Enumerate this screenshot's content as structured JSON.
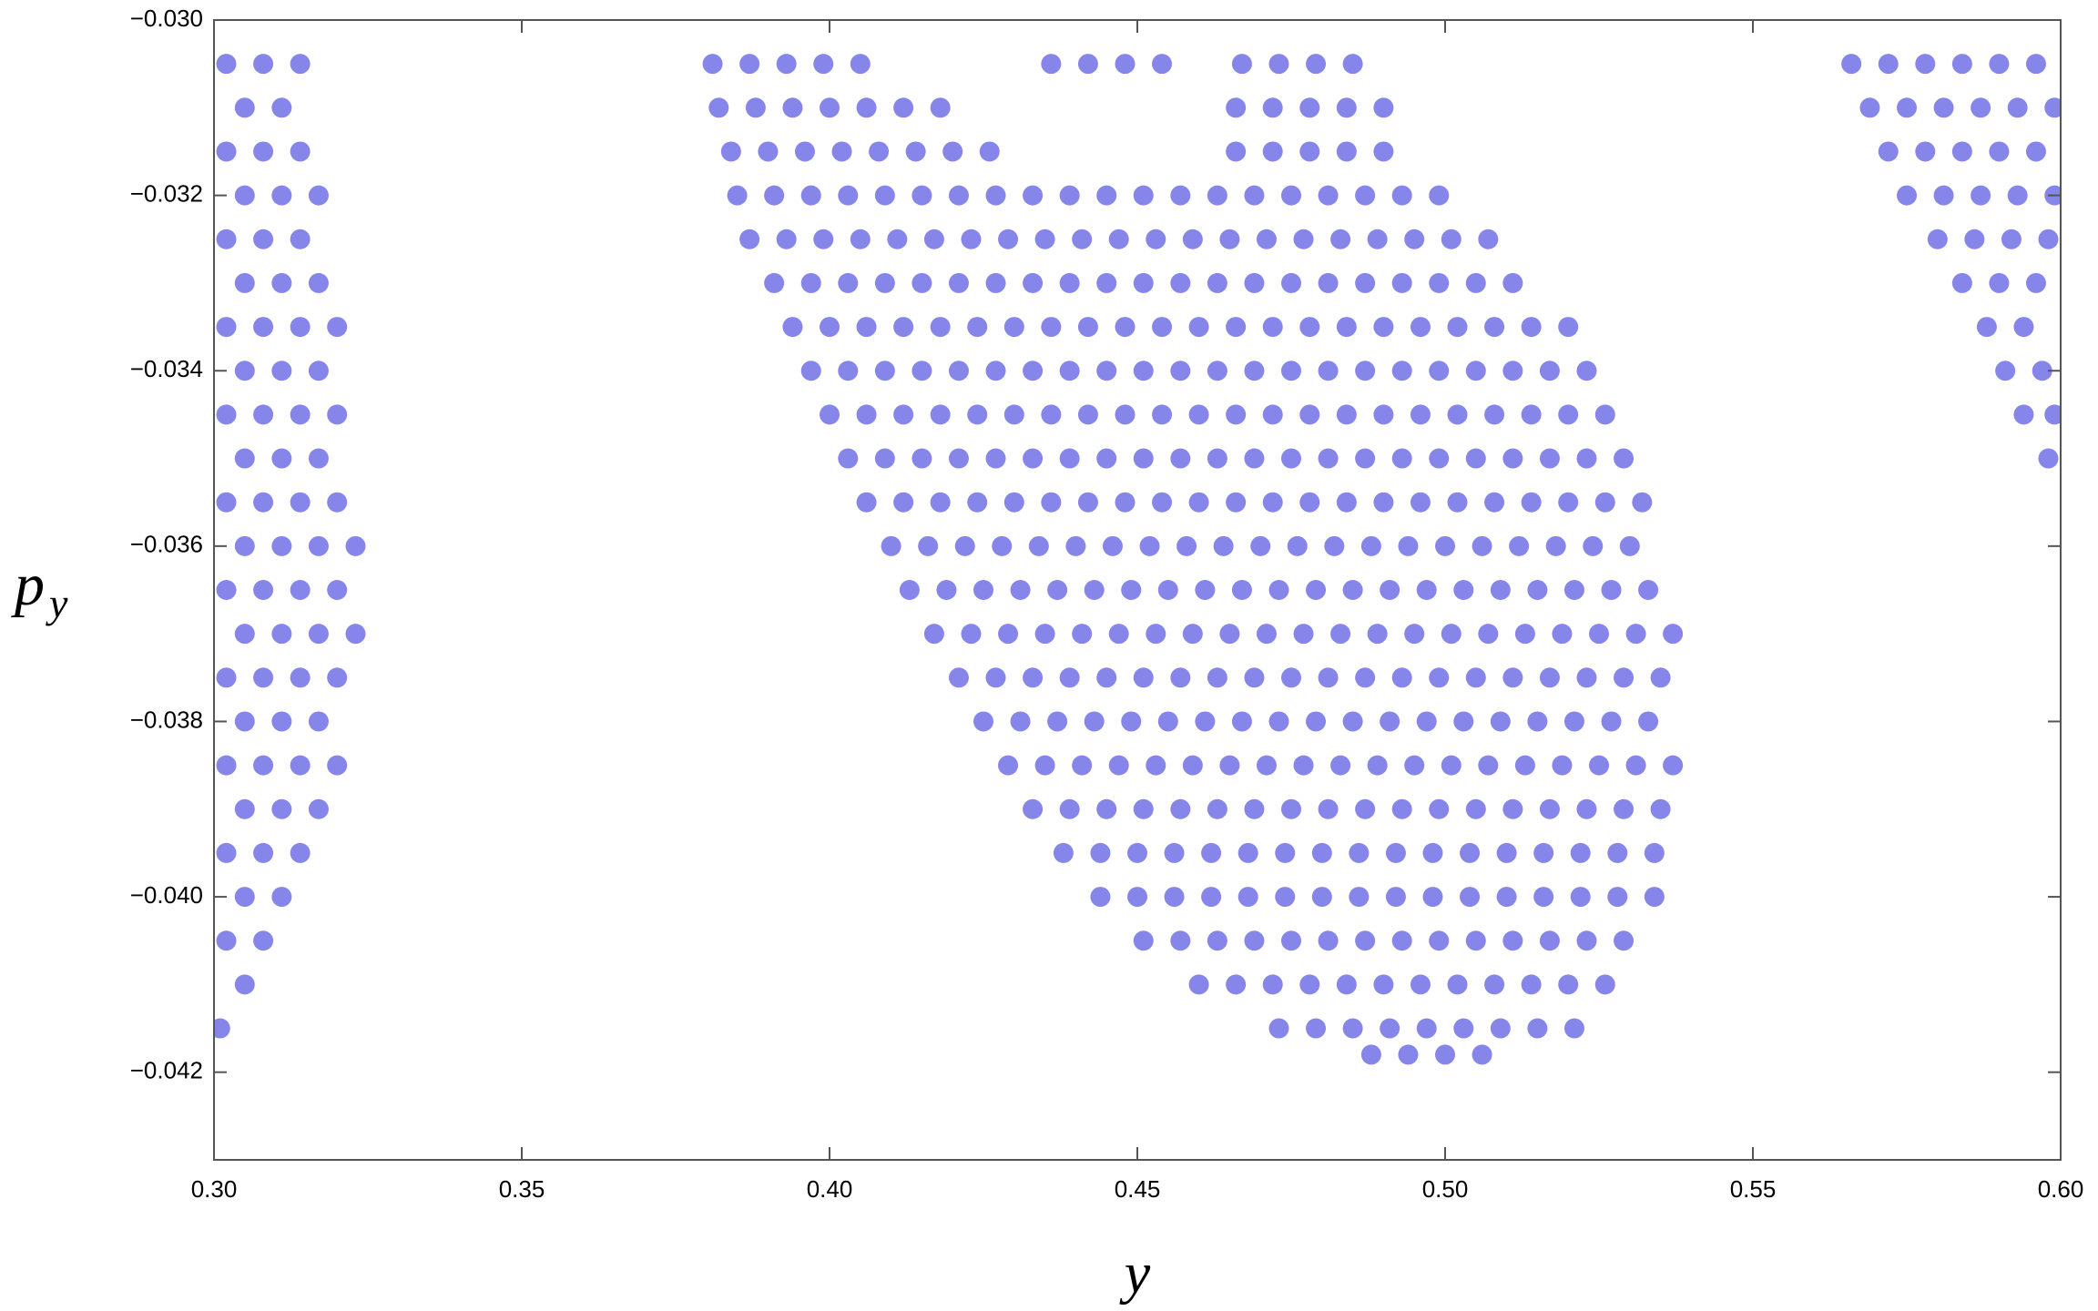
{
  "chart_data": {
    "type": "scatter",
    "xlabel": "y",
    "ylabel": "p",
    "ylabel_subscript": "y",
    "xlim": [
      0.3,
      0.6
    ],
    "ylim": [
      -0.043,
      -0.03
    ],
    "xticks": [
      {
        "value": 0.3,
        "label": "0.30"
      },
      0.35,
      {
        "value": 0.4,
        "label": "0.40"
      },
      0.45,
      {
        "value": 0.5,
        "label": "0.50"
      },
      0.55,
      {
        "value": 0.6,
        "label": "0.60"
      }
    ],
    "yticks": [
      {
        "value": -0.03,
        "label": "−0.030"
      },
      {
        "value": -0.032,
        "label": "−0.032"
      },
      {
        "value": -0.034,
        "label": "−0.034"
      },
      {
        "value": -0.036,
        "label": "−0.036"
      },
      {
        "value": -0.038,
        "label": "−0.038"
      },
      {
        "value": -0.04,
        "label": "−0.040"
      },
      {
        "value": -0.042,
        "label": "−0.042"
      }
    ],
    "color": "#3535dc",
    "x": [
      0.302,
      0.308,
      0.314,
      0.305,
      0.311,
      0.302,
      0.308,
      0.314,
      0.305,
      0.311,
      0.317,
      0.302,
      0.308,
      0.314,
      0.305,
      0.311,
      0.317,
      0.302,
      0.308,
      0.314,
      0.32,
      0.305,
      0.311,
      0.317,
      0.302,
      0.308,
      0.314,
      0.32,
      0.305,
      0.311,
      0.317,
      0.302,
      0.308,
      0.314,
      0.32,
      0.305,
      0.311,
      0.317,
      0.323,
      0.302,
      0.308,
      0.314,
      0.32,
      0.305,
      0.311,
      0.317,
      0.323,
      0.302,
      0.308,
      0.314,
      0.32,
      0.305,
      0.311,
      0.317,
      0.302,
      0.308,
      0.314,
      0.32,
      0.305,
      0.311,
      0.317,
      0.302,
      0.308,
      0.314,
      0.305,
      0.311,
      0.302,
      0.308,
      0.305,
      0.301,
      0.381,
      0.387,
      0.393,
      0.399,
      0.405,
      0.436,
      0.442,
      0.448,
      0.454,
      0.467,
      0.473,
      0.479,
      0.485,
      0.382,
      0.388,
      0.394,
      0.4,
      0.406,
      0.412,
      0.418,
      0.466,
      0.472,
      0.478,
      0.484,
      0.49,
      0.384,
      0.39,
      0.396,
      0.402,
      0.408,
      0.414,
      0.42,
      0.426,
      0.466,
      0.472,
      0.478,
      0.484,
      0.49,
      0.385,
      0.391,
      0.397,
      0.403,
      0.409,
      0.415,
      0.421,
      0.427,
      0.433,
      0.439,
      0.445,
      0.451,
      0.457,
      0.463,
      0.469,
      0.475,
      0.481,
      0.487,
      0.493,
      0.499,
      0.387,
      0.393,
      0.399,
      0.405,
      0.411,
      0.417,
      0.423,
      0.429,
      0.435,
      0.441,
      0.447,
      0.453,
      0.459,
      0.465,
      0.471,
      0.477,
      0.483,
      0.489,
      0.495,
      0.501,
      0.507,
      0.391,
      0.397,
      0.403,
      0.409,
      0.415,
      0.421,
      0.427,
      0.433,
      0.439,
      0.445,
      0.451,
      0.457,
      0.463,
      0.469,
      0.475,
      0.481,
      0.487,
      0.493,
      0.499,
      0.505,
      0.511,
      0.394,
      0.4,
      0.406,
      0.412,
      0.418,
      0.424,
      0.43,
      0.436,
      0.442,
      0.448,
      0.454,
      0.46,
      0.466,
      0.472,
      0.478,
      0.484,
      0.49,
      0.496,
      0.502,
      0.508,
      0.514,
      0.52,
      0.397,
      0.403,
      0.409,
      0.415,
      0.421,
      0.427,
      0.433,
      0.439,
      0.445,
      0.451,
      0.457,
      0.463,
      0.469,
      0.475,
      0.481,
      0.487,
      0.493,
      0.499,
      0.505,
      0.511,
      0.517,
      0.523,
      0.4,
      0.406,
      0.412,
      0.418,
      0.424,
      0.43,
      0.436,
      0.442,
      0.448,
      0.454,
      0.46,
      0.466,
      0.472,
      0.478,
      0.484,
      0.49,
      0.496,
      0.502,
      0.508,
      0.514,
      0.52,
      0.526,
      0.403,
      0.409,
      0.415,
      0.421,
      0.427,
      0.433,
      0.439,
      0.445,
      0.451,
      0.457,
      0.463,
      0.469,
      0.475,
      0.481,
      0.487,
      0.493,
      0.499,
      0.505,
      0.511,
      0.517,
      0.523,
      0.529,
      0.406,
      0.412,
      0.418,
      0.424,
      0.43,
      0.436,
      0.442,
      0.448,
      0.454,
      0.46,
      0.466,
      0.472,
      0.478,
      0.484,
      0.49,
      0.496,
      0.502,
      0.508,
      0.514,
      0.52,
      0.526,
      0.532,
      0.41,
      0.416,
      0.422,
      0.428,
      0.434,
      0.44,
      0.446,
      0.452,
      0.458,
      0.464,
      0.47,
      0.476,
      0.482,
      0.488,
      0.494,
      0.5,
      0.506,
      0.512,
      0.518,
      0.524,
      0.53,
      0.413,
      0.419,
      0.425,
      0.431,
      0.437,
      0.443,
      0.449,
      0.455,
      0.461,
      0.467,
      0.473,
      0.479,
      0.485,
      0.491,
      0.497,
      0.503,
      0.509,
      0.515,
      0.521,
      0.527,
      0.533,
      0.417,
      0.423,
      0.429,
      0.435,
      0.441,
      0.447,
      0.453,
      0.459,
      0.465,
      0.471,
      0.477,
      0.483,
      0.489,
      0.495,
      0.501,
      0.507,
      0.513,
      0.519,
      0.525,
      0.531,
      0.537,
      0.421,
      0.427,
      0.433,
      0.439,
      0.445,
      0.451,
      0.457,
      0.463,
      0.469,
      0.475,
      0.481,
      0.487,
      0.493,
      0.499,
      0.505,
      0.511,
      0.517,
      0.523,
      0.529,
      0.535,
      0.425,
      0.431,
      0.437,
      0.443,
      0.449,
      0.455,
      0.461,
      0.467,
      0.473,
      0.479,
      0.485,
      0.491,
      0.497,
      0.503,
      0.509,
      0.515,
      0.521,
      0.527,
      0.533,
      0.429,
      0.435,
      0.441,
      0.447,
      0.453,
      0.459,
      0.465,
      0.471,
      0.477,
      0.483,
      0.489,
      0.495,
      0.501,
      0.507,
      0.513,
      0.519,
      0.525,
      0.531,
      0.537,
      0.433,
      0.439,
      0.445,
      0.451,
      0.457,
      0.463,
      0.469,
      0.475,
      0.481,
      0.487,
      0.493,
      0.499,
      0.505,
      0.511,
      0.517,
      0.523,
      0.529,
      0.535,
      0.438,
      0.444,
      0.45,
      0.456,
      0.462,
      0.468,
      0.474,
      0.48,
      0.486,
      0.492,
      0.498,
      0.504,
      0.51,
      0.516,
      0.522,
      0.528,
      0.534,
      0.444,
      0.45,
      0.456,
      0.462,
      0.468,
      0.474,
      0.48,
      0.486,
      0.492,
      0.498,
      0.504,
      0.51,
      0.516,
      0.522,
      0.528,
      0.534,
      0.451,
      0.457,
      0.463,
      0.469,
      0.475,
      0.481,
      0.487,
      0.493,
      0.499,
      0.505,
      0.511,
      0.517,
      0.523,
      0.529,
      0.46,
      0.466,
      0.472,
      0.478,
      0.484,
      0.49,
      0.496,
      0.502,
      0.508,
      0.514,
      0.52,
      0.526,
      0.473,
      0.479,
      0.485,
      0.491,
      0.497,
      0.503,
      0.509,
      0.515,
      0.521,
      0.488,
      0.494,
      0.5,
      0.506,
      0.566,
      0.572,
      0.578,
      0.584,
      0.59,
      0.596,
      0.569,
      0.575,
      0.581,
      0.587,
      0.593,
      0.599,
      0.572,
      0.578,
      0.584,
      0.59,
      0.596,
      0.575,
      0.581,
      0.587,
      0.593,
      0.599,
      0.58,
      0.586,
      0.592,
      0.598,
      0.584,
      0.59,
      0.596,
      0.588,
      0.594,
      0.591,
      0.597,
      0.594,
      0.599,
      0.598
    ],
    "values": [
      -0.0305,
      -0.0305,
      -0.0305,
      -0.031,
      -0.031,
      -0.0315,
      -0.0315,
      -0.0315,
      -0.032,
      -0.032,
      -0.032,
      -0.0325,
      -0.0325,
      -0.0325,
      -0.033,
      -0.033,
      -0.033,
      -0.0335,
      -0.0335,
      -0.0335,
      -0.0335,
      -0.034,
      -0.034,
      -0.034,
      -0.0345,
      -0.0345,
      -0.0345,
      -0.0345,
      -0.035,
      -0.035,
      -0.035,
      -0.0355,
      -0.0355,
      -0.0355,
      -0.0355,
      -0.036,
      -0.036,
      -0.036,
      -0.036,
      -0.0365,
      -0.0365,
      -0.0365,
      -0.0365,
      -0.037,
      -0.037,
      -0.037,
      -0.037,
      -0.0375,
      -0.0375,
      -0.0375,
      -0.0375,
      -0.038,
      -0.038,
      -0.038,
      -0.0385,
      -0.0385,
      -0.0385,
      -0.0385,
      -0.039,
      -0.039,
      -0.039,
      -0.0395,
      -0.0395,
      -0.0395,
      -0.04,
      -0.04,
      -0.0405,
      -0.0405,
      -0.041,
      -0.0415,
      -0.0305,
      -0.0305,
      -0.0305,
      -0.0305,
      -0.0305,
      -0.0305,
      -0.0305,
      -0.0305,
      -0.0305,
      -0.0305,
      -0.0305,
      -0.0305,
      -0.0305,
      -0.031,
      -0.031,
      -0.031,
      -0.031,
      -0.031,
      -0.031,
      -0.031,
      -0.031,
      -0.031,
      -0.031,
      -0.031,
      -0.031,
      -0.0315,
      -0.0315,
      -0.0315,
      -0.0315,
      -0.0315,
      -0.0315,
      -0.0315,
      -0.0315,
      -0.0315,
      -0.0315,
      -0.0315,
      -0.0315,
      -0.0315,
      -0.032,
      -0.032,
      -0.032,
      -0.032,
      -0.032,
      -0.032,
      -0.032,
      -0.032,
      -0.032,
      -0.032,
      -0.032,
      -0.032,
      -0.032,
      -0.032,
      -0.032,
      -0.032,
      -0.032,
      -0.032,
      -0.032,
      -0.032,
      -0.0325,
      -0.0325,
      -0.0325,
      -0.0325,
      -0.0325,
      -0.0325,
      -0.0325,
      -0.0325,
      -0.0325,
      -0.0325,
      -0.0325,
      -0.0325,
      -0.0325,
      -0.0325,
      -0.0325,
      -0.0325,
      -0.0325,
      -0.0325,
      -0.0325,
      -0.0325,
      -0.0325,
      -0.033,
      -0.033,
      -0.033,
      -0.033,
      -0.033,
      -0.033,
      -0.033,
      -0.033,
      -0.033,
      -0.033,
      -0.033,
      -0.033,
      -0.033,
      -0.033,
      -0.033,
      -0.033,
      -0.033,
      -0.033,
      -0.033,
      -0.033,
      -0.033,
      -0.0335,
      -0.0335,
      -0.0335,
      -0.0335,
      -0.0335,
      -0.0335,
      -0.0335,
      -0.0335,
      -0.0335,
      -0.0335,
      -0.0335,
      -0.0335,
      -0.0335,
      -0.0335,
      -0.0335,
      -0.0335,
      -0.0335,
      -0.0335,
      -0.0335,
      -0.0335,
      -0.0335,
      -0.0335,
      -0.034,
      -0.034,
      -0.034,
      -0.034,
      -0.034,
      -0.034,
      -0.034,
      -0.034,
      -0.034,
      -0.034,
      -0.034,
      -0.034,
      -0.034,
      -0.034,
      -0.034,
      -0.034,
      -0.034,
      -0.034,
      -0.034,
      -0.034,
      -0.034,
      -0.034,
      -0.0345,
      -0.0345,
      -0.0345,
      -0.0345,
      -0.0345,
      -0.0345,
      -0.0345,
      -0.0345,
      -0.0345,
      -0.0345,
      -0.0345,
      -0.0345,
      -0.0345,
      -0.0345,
      -0.0345,
      -0.0345,
      -0.0345,
      -0.0345,
      -0.0345,
      -0.0345,
      -0.0345,
      -0.0345,
      -0.035,
      -0.035,
      -0.035,
      -0.035,
      -0.035,
      -0.035,
      -0.035,
      -0.035,
      -0.035,
      -0.035,
      -0.035,
      -0.035,
      -0.035,
      -0.035,
      -0.035,
      -0.035,
      -0.035,
      -0.035,
      -0.035,
      -0.035,
      -0.035,
      -0.035,
      -0.0355,
      -0.0355,
      -0.0355,
      -0.0355,
      -0.0355,
      -0.0355,
      -0.0355,
      -0.0355,
      -0.0355,
      -0.0355,
      -0.0355,
      -0.0355,
      -0.0355,
      -0.0355,
      -0.0355,
      -0.0355,
      -0.0355,
      -0.0355,
      -0.0355,
      -0.0355,
      -0.0355,
      -0.0355,
      -0.036,
      -0.036,
      -0.036,
      -0.036,
      -0.036,
      -0.036,
      -0.036,
      -0.036,
      -0.036,
      -0.036,
      -0.036,
      -0.036,
      -0.036,
      -0.036,
      -0.036,
      -0.036,
      -0.036,
      -0.036,
      -0.036,
      -0.036,
      -0.036,
      -0.0365,
      -0.0365,
      -0.0365,
      -0.0365,
      -0.0365,
      -0.0365,
      -0.0365,
      -0.0365,
      -0.0365,
      -0.0365,
      -0.0365,
      -0.0365,
      -0.0365,
      -0.0365,
      -0.0365,
      -0.0365,
      -0.0365,
      -0.0365,
      -0.0365,
      -0.0365,
      -0.0365,
      -0.037,
      -0.037,
      -0.037,
      -0.037,
      -0.037,
      -0.037,
      -0.037,
      -0.037,
      -0.037,
      -0.037,
      -0.037,
      -0.037,
      -0.037,
      -0.037,
      -0.037,
      -0.037,
      -0.037,
      -0.037,
      -0.037,
      -0.037,
      -0.037,
      -0.0375,
      -0.0375,
      -0.0375,
      -0.0375,
      -0.0375,
      -0.0375,
      -0.0375,
      -0.0375,
      -0.0375,
      -0.0375,
      -0.0375,
      -0.0375,
      -0.0375,
      -0.0375,
      -0.0375,
      -0.0375,
      -0.0375,
      -0.0375,
      -0.0375,
      -0.0375,
      -0.038,
      -0.038,
      -0.038,
      -0.038,
      -0.038,
      -0.038,
      -0.038,
      -0.038,
      -0.038,
      -0.038,
      -0.038,
      -0.038,
      -0.038,
      -0.038,
      -0.038,
      -0.038,
      -0.038,
      -0.038,
      -0.038,
      -0.0385,
      -0.0385,
      -0.0385,
      -0.0385,
      -0.0385,
      -0.0385,
      -0.0385,
      -0.0385,
      -0.0385,
      -0.0385,
      -0.0385,
      -0.0385,
      -0.0385,
      -0.0385,
      -0.0385,
      -0.0385,
      -0.0385,
      -0.0385,
      -0.0385,
      -0.039,
      -0.039,
      -0.039,
      -0.039,
      -0.039,
      -0.039,
      -0.039,
      -0.039,
      -0.039,
      -0.039,
      -0.039,
      -0.039,
      -0.039,
      -0.039,
      -0.039,
      -0.039,
      -0.039,
      -0.039,
      -0.0395,
      -0.0395,
      -0.0395,
      -0.0395,
      -0.0395,
      -0.0395,
      -0.0395,
      -0.0395,
      -0.0395,
      -0.0395,
      -0.0395,
      -0.0395,
      -0.0395,
      -0.0395,
      -0.0395,
      -0.0395,
      -0.0395,
      -0.04,
      -0.04,
      -0.04,
      -0.04,
      -0.04,
      -0.04,
      -0.04,
      -0.04,
      -0.04,
      -0.04,
      -0.04,
      -0.04,
      -0.04,
      -0.04,
      -0.04,
      -0.04,
      -0.0405,
      -0.0405,
      -0.0405,
      -0.0405,
      -0.0405,
      -0.0405,
      -0.0405,
      -0.0405,
      -0.0405,
      -0.0405,
      -0.0405,
      -0.0405,
      -0.0405,
      -0.0405,
      -0.041,
      -0.041,
      -0.041,
      -0.041,
      -0.041,
      -0.041,
      -0.041,
      -0.041,
      -0.041,
      -0.041,
      -0.041,
      -0.041,
      -0.0415,
      -0.0415,
      -0.0415,
      -0.0415,
      -0.0415,
      -0.0415,
      -0.0415,
      -0.0415,
      -0.0415,
      -0.0418,
      -0.0418,
      -0.0418,
      -0.0418,
      -0.0305,
      -0.0305,
      -0.0305,
      -0.0305,
      -0.0305,
      -0.0305,
      -0.031,
      -0.031,
      -0.031,
      -0.031,
      -0.031,
      -0.031,
      -0.0315,
      -0.0315,
      -0.0315,
      -0.0315,
      -0.0315,
      -0.032,
      -0.032,
      -0.032,
      -0.032,
      -0.032,
      -0.0325,
      -0.0325,
      -0.0325,
      -0.0325,
      -0.033,
      -0.033,
      -0.033,
      -0.0335,
      -0.0335,
      -0.034,
      -0.034,
      -0.0345,
      -0.0345,
      -0.035
    ]
  }
}
